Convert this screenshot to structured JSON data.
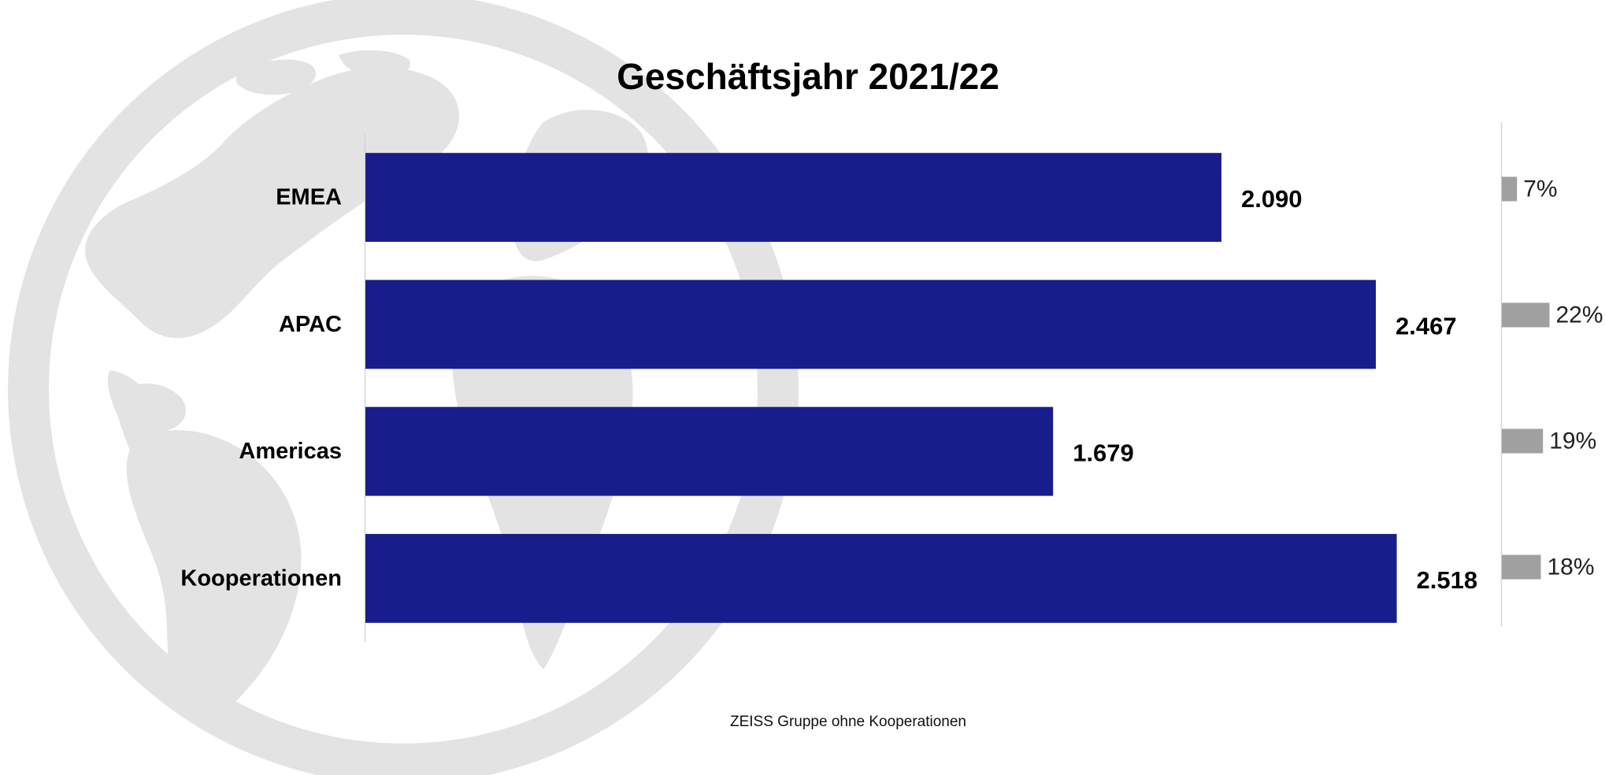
{
  "chart_data": {
    "type": "bar",
    "orientation": "horizontal",
    "title": "Geschäftsjahr 2021/22",
    "categories": [
      "EMEA",
      "APAC",
      "Americas",
      "Kooperationen"
    ],
    "values": [
      2090,
      2467,
      1679,
      2518
    ],
    "value_labels": [
      "2.090",
      "2.467",
      "1.679",
      "2.518"
    ],
    "xlim": [
      0,
      2640
    ],
    "bar_color": "#171e8c",
    "secondary": {
      "type": "bar",
      "orientation": "horizontal",
      "values": [
        7,
        22,
        19,
        18
      ],
      "labels": [
        "7%",
        "22%",
        "19%",
        "18%"
      ],
      "xlim": [
        0,
        100
      ],
      "bar_color": "#a0a0a0"
    },
    "footnote": "ZEISS Gruppe ohne Kooperationen",
    "grid": false,
    "legend": "none"
  },
  "colors": {
    "globe": "#e3e3e3",
    "axis": "#d4d4d4",
    "text": "#000000"
  }
}
